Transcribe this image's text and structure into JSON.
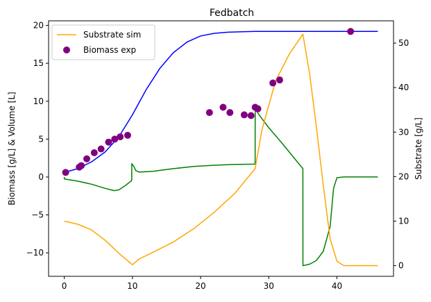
{
  "chart_data": {
    "type": "line",
    "title": "Fedbatch",
    "xlabel": "",
    "ylabel_left": "Biomass [g/L] & Volume [L]",
    "ylabel_right": "Substrate [g/L]",
    "xlim": [
      -2.3,
      48.3
    ],
    "ylim_left": [
      -13.1,
      20.6
    ],
    "ylim_right": [
      -2.4,
      55.0
    ],
    "x_ticks": [
      0,
      10,
      20,
      30,
      40
    ],
    "y_ticks_left": [
      -10,
      -5,
      0,
      5,
      10,
      15,
      20
    ],
    "y_ticks_right": [
      0,
      10,
      20,
      30,
      40,
      50
    ],
    "grid": false,
    "legend_position": "top-left",
    "legend": [
      {
        "label": "Substrate sim",
        "kind": "line",
        "color": "#ffa500"
      },
      {
        "label": "Biomass exp",
        "kind": "marker",
        "color": "#800080"
      }
    ],
    "series": [
      {
        "axis": "left",
        "color": "#0000ff",
        "x": [
          0,
          2,
          4,
          6,
          8,
          10,
          12,
          14,
          16,
          18,
          20,
          22,
          24,
          26,
          28,
          30,
          32,
          34,
          36,
          40,
          46
        ],
        "y": [
          0.6,
          1.1,
          2.0,
          3.3,
          5.3,
          8.2,
          11.5,
          14.3,
          16.4,
          17.8,
          18.6,
          18.95,
          19.1,
          19.15,
          19.2,
          19.2,
          19.2,
          19.2,
          19.2,
          19.2,
          19.2
        ]
      },
      {
        "axis": "left",
        "color": "#008000",
        "x": [
          0,
          0.01,
          2,
          4,
          6,
          7.3,
          8,
          9,
          9.9,
          9.91,
          10.2,
          10.5,
          11,
          13,
          16,
          19,
          22,
          25,
          28,
          28.01,
          28.5,
          30,
          32,
          34,
          35,
          35.01,
          36,
          37,
          38,
          39,
          39.5,
          40,
          41,
          46
        ],
        "y": [
          0,
          -0.25,
          -0.55,
          -0.95,
          -1.5,
          -1.8,
          -1.7,
          -1.1,
          -0.45,
          1.75,
          1.4,
          0.85,
          0.65,
          0.75,
          1.1,
          1.4,
          1.55,
          1.65,
          1.7,
          9.1,
          8.3,
          6.5,
          4.4,
          2.2,
          1.1,
          -11.7,
          -11.5,
          -11.0,
          -9.8,
          -6.5,
          -1.5,
          -0.1,
          0,
          0
        ]
      },
      {
        "name": "Substrate sim",
        "axis": "right",
        "color": "#ffa500",
        "x": [
          0,
          2,
          4,
          6,
          8,
          10,
          10.3,
          11,
          13,
          16,
          19,
          22,
          25,
          28,
          29,
          31,
          33,
          35,
          36,
          37,
          38,
          39,
          40,
          41,
          46
        ],
        "y": [
          10,
          9.3,
          8.0,
          5.7,
          2.8,
          0.2,
          0.6,
          1.5,
          3.0,
          5.3,
          8.3,
          12.0,
          16.2,
          21.8,
          30.5,
          41.5,
          47.5,
          52.0,
          43.0,
          31.0,
          18.0,
          6.0,
          1.0,
          0,
          0
        ]
      },
      {
        "name": "Biomass exp",
        "axis": "left",
        "kind": "scatter",
        "color": "#800080",
        "x": [
          0.2,
          2.2,
          2.5,
          3.3,
          4.4,
          5.4,
          6.5,
          7.4,
          8.2,
          9.3,
          21.3,
          23.3,
          24.3,
          26.4,
          27.4,
          28.0,
          28.4,
          30.6,
          31.6,
          42.0
        ],
        "y": [
          0.6,
          1.3,
          1.5,
          2.4,
          3.2,
          3.7,
          4.6,
          5.0,
          5.3,
          5.5,
          8.5,
          9.2,
          8.5,
          8.2,
          8.1,
          9.2,
          9.0,
          12.4,
          12.8,
          19.2
        ]
      }
    ]
  }
}
